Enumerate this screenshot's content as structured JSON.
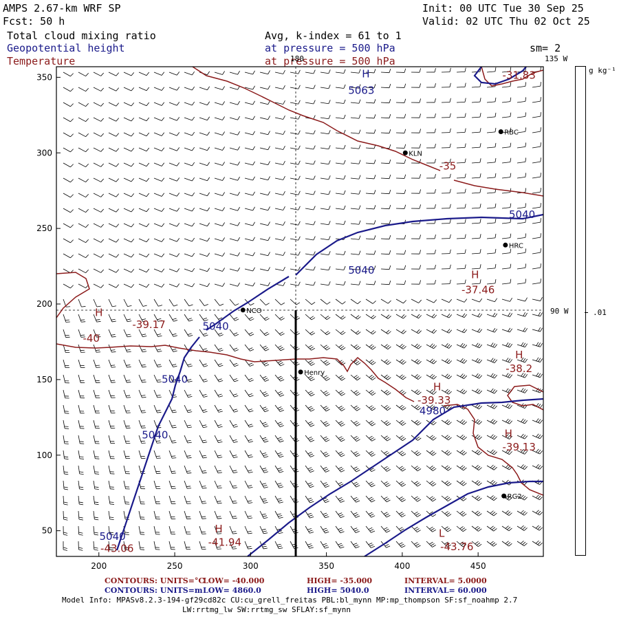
{
  "header": {
    "model": "AMPS 2.67-km WRF SP",
    "init": "Init: 00 UTC Tue 30 Sep 25",
    "forecast": "Fcst:   50 h",
    "valid": "Valid: 02 UTC Thu 02 Oct 25",
    "field1": "Total cloud mixing ratio",
    "avg_k": "Avg, k-index =  61 to   1",
    "field2": "Geopotential height",
    "pressure1": "at pressure =  500 hPa",
    "sm": "sm= 2",
    "field3": "Temperature",
    "pressure2": "at pressure =  500 hPa",
    "lon_135": "135 W",
    "lon_180": "180",
    "lon_90": "90 W"
  },
  "colorbar": {
    "units": "g kg⁻¹",
    "value": ".01"
  },
  "axes": {
    "x_ticks": [
      "200",
      "250",
      "300",
      "350",
      "400",
      "450"
    ],
    "x_tick_values": [
      200,
      250,
      300,
      350,
      400,
      450
    ],
    "y_ticks": [
      "50",
      "100",
      "150",
      "200",
      "250",
      "300",
      "350"
    ],
    "y_tick_values": [
      50,
      100,
      150,
      200,
      250,
      300,
      350
    ],
    "x_range": [
      172,
      493
    ],
    "y_range": [
      33,
      357
    ]
  },
  "stations": [
    {
      "name": "RBC",
      "x": 465,
      "y": 314
    },
    {
      "name": "KLN",
      "x": 402,
      "y": 300
    },
    {
      "name": "HRC",
      "x": 468,
      "y": 239
    },
    {
      "name": "NCO",
      "x": 295,
      "y": 196
    },
    {
      "name": "Henry",
      "x": 333,
      "y": 155
    },
    {
      "name": "RG2",
      "x": 467,
      "y": 73
    }
  ],
  "height_labels": [
    {
      "text": "5063",
      "x": 373,
      "y": 339
    },
    {
      "text": "5040",
      "x": 479,
      "y": 257
    },
    {
      "text": "5040",
      "x": 373,
      "y": 220
    },
    {
      "text": "5040",
      "x": 277,
      "y": 183
    },
    {
      "text": "5040",
      "x": 250,
      "y": 148
    },
    {
      "text": "5040",
      "x": 237,
      "y": 111
    },
    {
      "text": "5040",
      "x": 209,
      "y": 44
    },
    {
      "text": "4980",
      "x": 420,
      "y": 127
    }
  ],
  "height_centers": [
    {
      "text": "H",
      "x": 376,
      "y": 350
    }
  ],
  "temp_labels": [
    {
      "text": "-31.83",
      "x": 477,
      "y": 349
    },
    {
      "text": "-35",
      "x": 430,
      "y": 289
    },
    {
      "text": "-37.46",
      "x": 450,
      "y": 207
    },
    {
      "text": "-39.17",
      "x": 233,
      "y": 184
    },
    {
      "text": "-40",
      "x": 195,
      "y": 175
    },
    {
      "text": "-38.2",
      "x": 477,
      "y": 155
    },
    {
      "text": "-39.33",
      "x": 421,
      "y": 134
    },
    {
      "text": "-39.13",
      "x": 477,
      "y": 103
    },
    {
      "text": "-43.06",
      "x": 212,
      "y": 36
    },
    {
      "text": "-41.94",
      "x": 283,
      "y": 40
    },
    {
      "text": "-43.76",
      "x": 436,
      "y": 37
    }
  ],
  "temp_centers": [
    {
      "text": "H",
      "x": 448,
      "y": 217
    },
    {
      "text": "H",
      "x": 200,
      "y": 192
    },
    {
      "text": "H",
      "x": 477,
      "y": 164
    },
    {
      "text": "H",
      "x": 423,
      "y": 143
    },
    {
      "text": "H",
      "x": 470,
      "y": 112
    },
    {
      "text": "H",
      "x": 279,
      "y": 49
    },
    {
      "text": "L",
      "x": 426,
      "y": 46
    }
  ],
  "contour_info": {
    "temp": {
      "prefix": "CONTOURS:  UNITS=°C",
      "low": "LOW=  -40.000",
      "high": "HIGH=  -35.000",
      "interval": "INTERVAL=    5.0000"
    },
    "height": {
      "prefix": "CONTOURS:  UNITS=m",
      "low": "LOW=  4860.0",
      "high": "HIGH=  5040.0",
      "interval": "INTERVAL=    60.000"
    }
  },
  "model_info": {
    "line1": "Model Info: MPASv8.2.3-194-gf29cd82c CU:cu_grell_freitas PBL:bl_mynn MP:mp_thompson SF:sf_noahmp 2.7",
    "line2": "LW:rrtmg_lw SW:rrtmg_sw SFLAY:sf_mynn"
  },
  "colors": {
    "height_contour": "#1a1a8a",
    "temp_contour": "#8b1a1a",
    "frame": "#000000"
  }
}
